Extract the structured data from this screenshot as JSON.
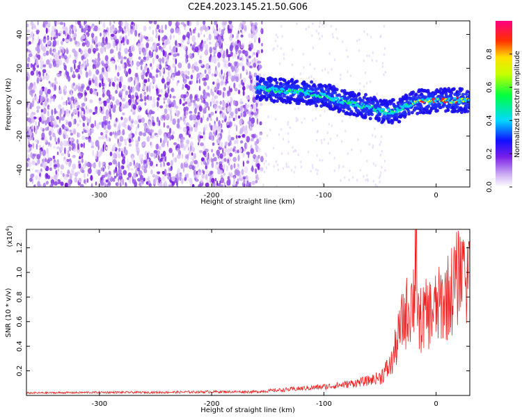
{
  "title": "C2E4.2023.145.21.50.G06",
  "colors": {
    "snr_line": "#ee2222",
    "noise_dots": "#8a2be2",
    "frame": "#000000"
  },
  "chart_data": [
    {
      "type": "heatmap",
      "xlabel": "Height of straight line (km)",
      "ylabel": "Frequency (Hz)",
      "xlim": [
        -365,
        30
      ],
      "ylim": [
        -50,
        48
      ],
      "x_ticks": [
        -300,
        -200,
        -100,
        0
      ],
      "y_ticks": [
        -40,
        -20,
        0,
        20,
        40
      ],
      "colorbar": {
        "label": "Normalized spectral amplitude",
        "range": [
          0.0,
          1.0
        ],
        "ticks": [
          0.0,
          0.2,
          0.4,
          0.6,
          0.8
        ]
      },
      "ridge_x": [
        -155,
        -140,
        -120,
        -100,
        -80,
        -60,
        -45,
        -35,
        -20,
        0,
        20,
        30
      ],
      "ridge_y": [
        8,
        7,
        6,
        4,
        0,
        -3,
        -6,
        -5,
        0,
        1,
        1,
        1
      ]
    },
    {
      "type": "line",
      "xlabel": "Height of straight line (km)",
      "ylabel": "SNR (10 * v/v)",
      "multiplier": "(x10",
      "multiplier_exp": "4",
      "multiplier_close": ")",
      "xlim": [
        -365,
        30
      ],
      "ylim": [
        0,
        1.35
      ],
      "x_ticks": [
        -300,
        -200,
        -100,
        0
      ],
      "y_ticks": [
        0.2,
        0.4,
        0.6,
        0.8,
        1.0,
        1.2
      ],
      "series": [
        {
          "x": [
            -365,
            -300,
            -250,
            -200,
            -160,
            -130,
            -100,
            -80,
            -60,
            -50,
            -40,
            -30,
            -25,
            -20,
            -15,
            -10,
            0,
            10,
            20,
            30
          ],
          "y": [
            0.02,
            0.025,
            0.025,
            0.03,
            0.03,
            0.05,
            0.07,
            0.09,
            0.12,
            0.15,
            0.25,
            0.6,
            0.7,
            0.8,
            0.6,
            0.65,
            0.7,
            0.8,
            0.95,
            1.0
          ]
        }
      ]
    }
  ]
}
